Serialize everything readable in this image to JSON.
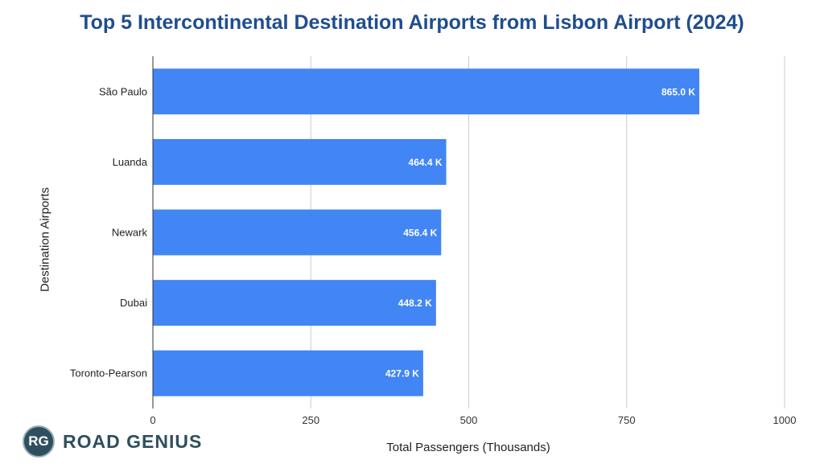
{
  "chart_data": {
    "type": "bar",
    "orientation": "horizontal",
    "title": "Top 5 Intercontinental Destination Airports from Lisbon Airport (2024)",
    "xlabel": "Total Passengers (Thousands)",
    "ylabel": "Destination Airports",
    "categories": [
      "São Paulo",
      "Luanda",
      "Newark",
      "Dubai",
      "Toronto-Pearson"
    ],
    "values": [
      865.0,
      464.4,
      456.4,
      448.2,
      427.9
    ],
    "data_labels": [
      "865.0 K",
      "464.4 K",
      "456.4 K",
      "448.2 K",
      "427.9 K"
    ],
    "xlim": [
      0,
      1000
    ],
    "xticks": [
      0,
      250,
      500,
      750,
      1000
    ],
    "xtick_labels": [
      "0",
      "250",
      "500",
      "750",
      "1000"
    ],
    "grid": true,
    "bar_color": "#4285f4",
    "title_color": "#1f4e8c"
  },
  "logo": {
    "mark": "RG",
    "text": "ROAD GENIUS"
  }
}
